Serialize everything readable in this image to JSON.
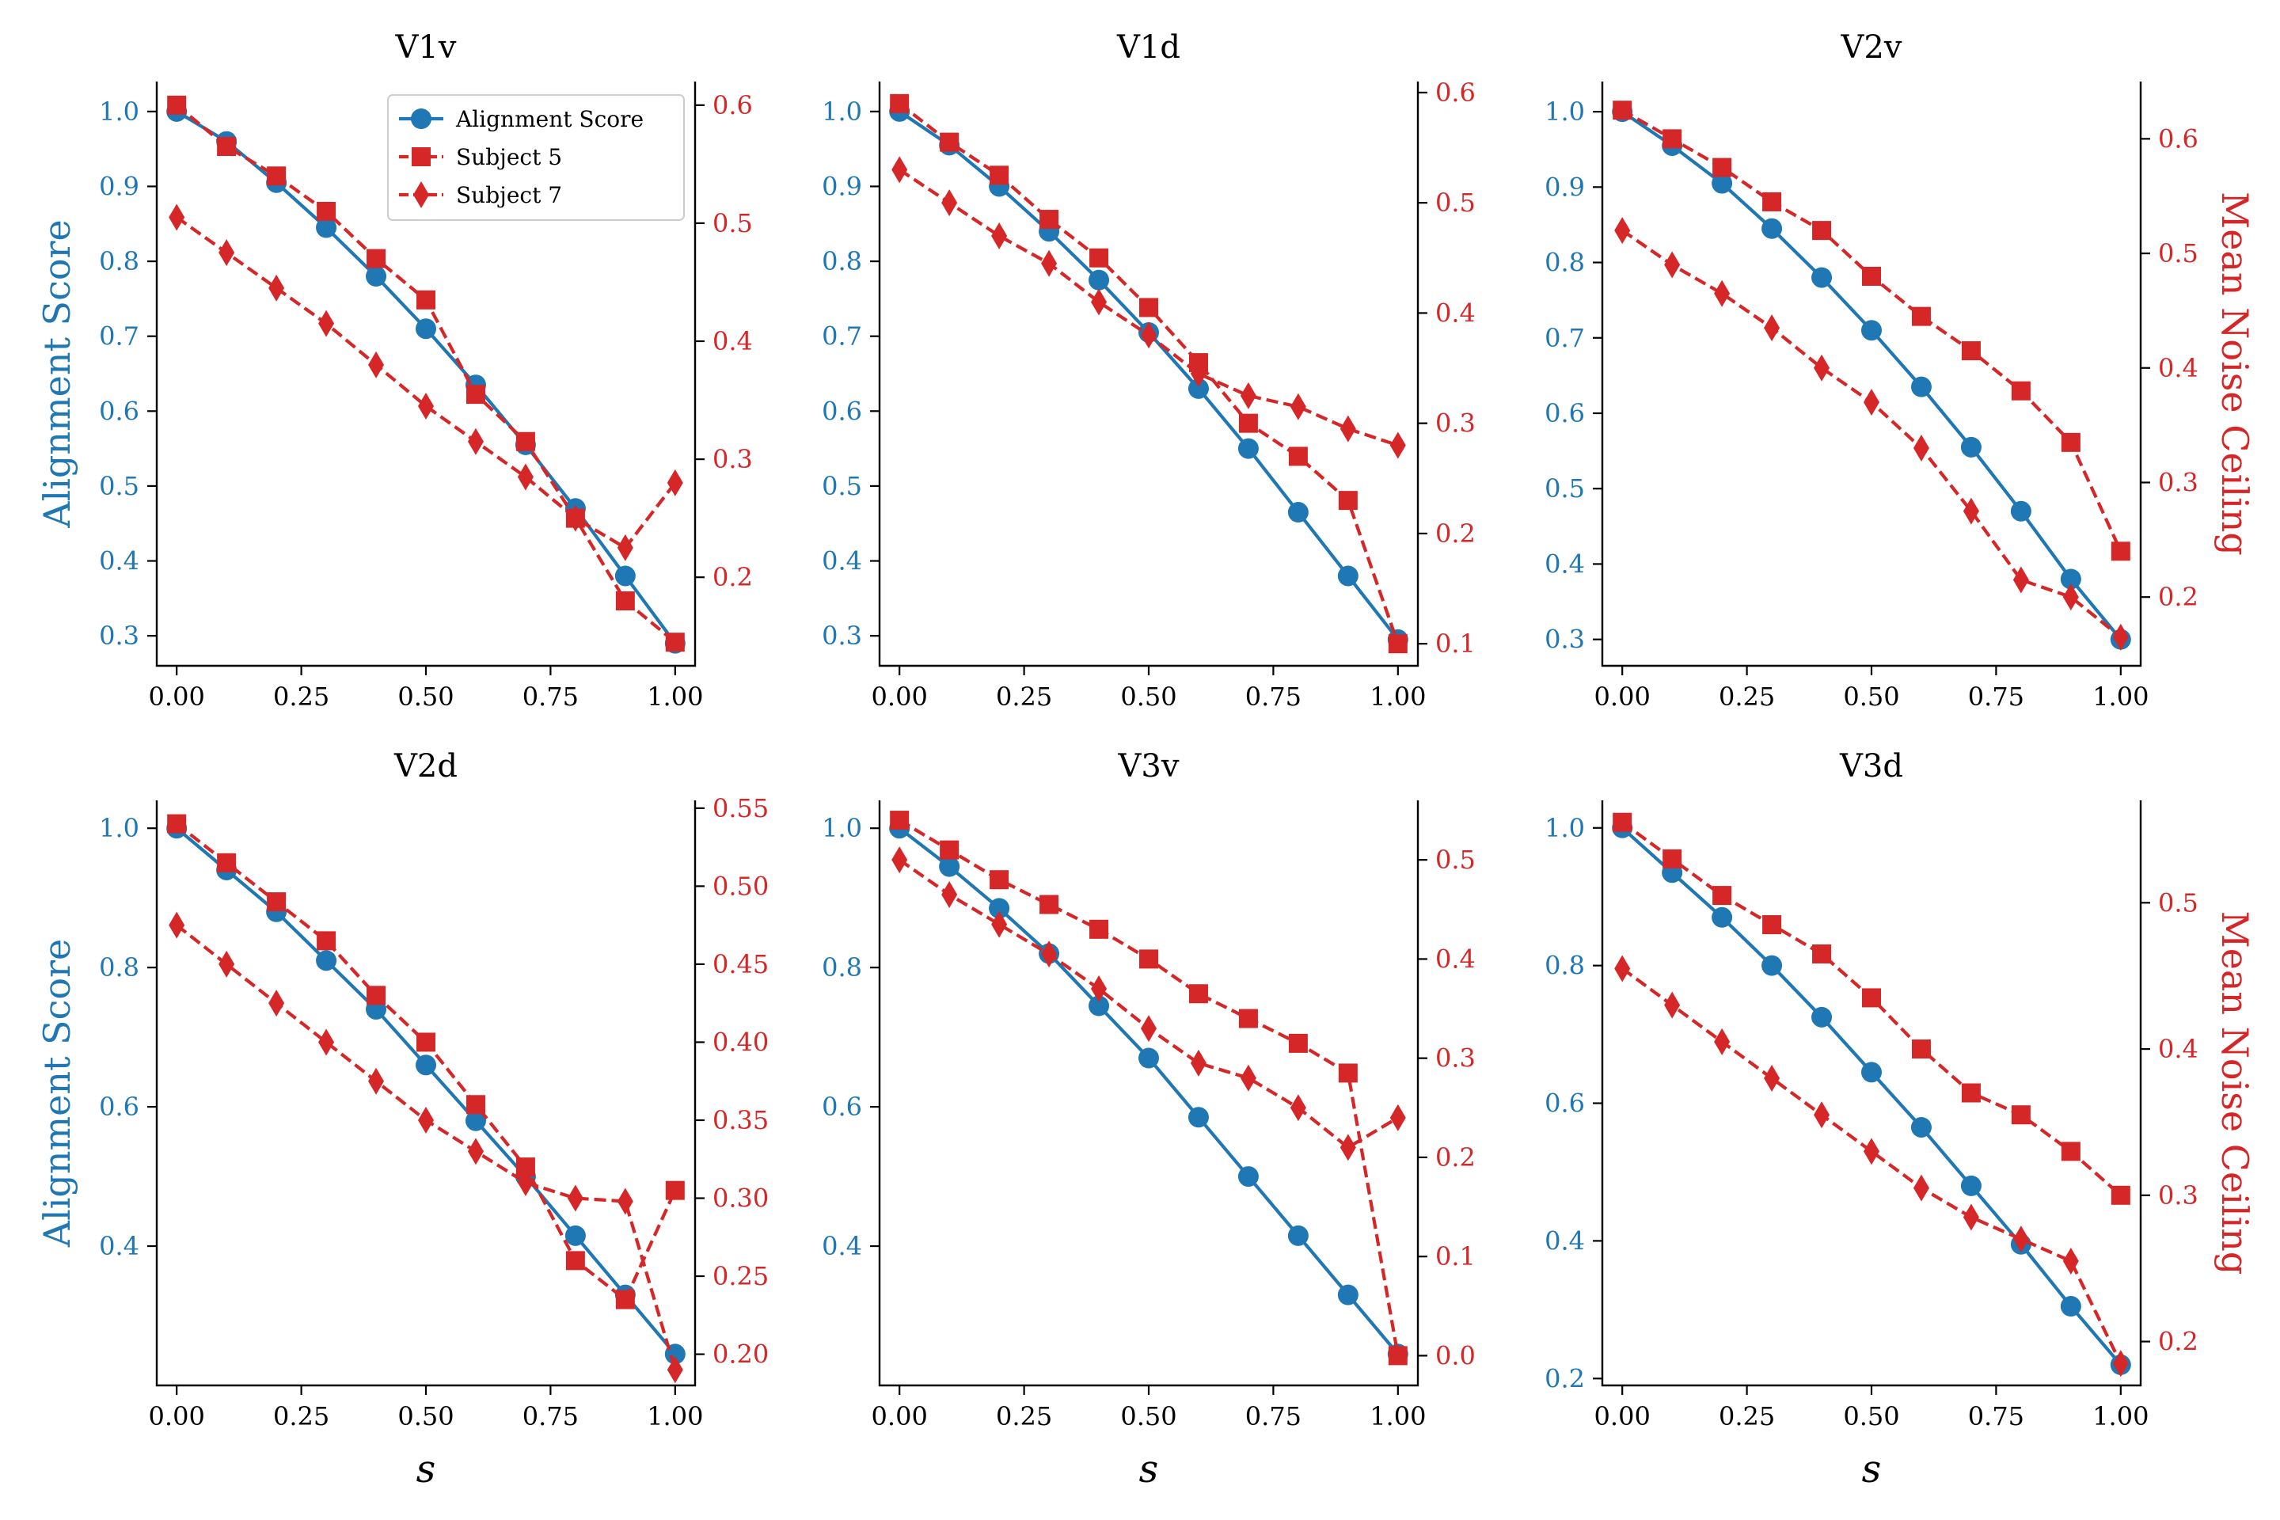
{
  "colors": {
    "alignment": "#1f77b4",
    "noise": "#d62728",
    "axis": "#000000"
  },
  "chart_data": [
    {
      "type": "line",
      "title": "V1v",
      "x": [
        0,
        0.1,
        0.2,
        0.3,
        0.4,
        0.5,
        0.6,
        0.7,
        0.8,
        0.9,
        1.0
      ],
      "xticks": [
        "0.00",
        "0.25",
        "0.50",
        "0.75",
        "1.00"
      ],
      "xlabel": "",
      "ylabel_left": "Alignment Score",
      "ylabel_right": "",
      "ylim_left": [
        0.26,
        1.04
      ],
      "ylim_right": [
        0.125,
        0.62
      ],
      "yticks_left": [
        "0.3",
        "0.4",
        "0.5",
        "0.6",
        "0.7",
        "0.8",
        "0.9",
        "1.0"
      ],
      "yticks_right": [
        "0.2",
        "0.3",
        "0.4",
        "0.5",
        "0.6"
      ],
      "series": [
        {
          "name": "Alignment Score",
          "axis": "left",
          "marker": "circle",
          "values": [
            1.0,
            0.96,
            0.905,
            0.845,
            0.78,
            0.71,
            0.635,
            0.555,
            0.47,
            0.38,
            0.29
          ]
        },
        {
          "name": "Subject 5",
          "axis": "right",
          "marker": "square",
          "values": [
            0.6,
            0.565,
            0.54,
            0.51,
            0.47,
            0.435,
            0.355,
            0.315,
            0.25,
            0.18,
            0.145
          ]
        },
        {
          "name": "Subject 7",
          "axis": "right",
          "marker": "diamond",
          "values": [
            0.505,
            0.475,
            0.445,
            0.415,
            0.38,
            0.345,
            0.315,
            0.285,
            0.25,
            0.225,
            0.28
          ]
        }
      ],
      "legend": {
        "position": "upper-right",
        "entries": [
          "Alignment Score",
          "Subject 5",
          "Subject 7"
        ]
      }
    },
    {
      "type": "line",
      "title": "V1d",
      "x": [
        0,
        0.1,
        0.2,
        0.3,
        0.4,
        0.5,
        0.6,
        0.7,
        0.8,
        0.9,
        1.0
      ],
      "xticks": [
        "0.00",
        "0.25",
        "0.50",
        "0.75",
        "1.00"
      ],
      "xlabel": "",
      "ylabel_left": "",
      "ylabel_right": "",
      "ylim_left": [
        0.26,
        1.04
      ],
      "ylim_right": [
        0.08,
        0.61
      ],
      "yticks_left": [
        "0.3",
        "0.4",
        "0.5",
        "0.6",
        "0.7",
        "0.8",
        "0.9",
        "1.0"
      ],
      "yticks_right": [
        "0.1",
        "0.2",
        "0.3",
        "0.4",
        "0.5",
        "0.6"
      ],
      "series": [
        {
          "name": "Alignment Score",
          "axis": "left",
          "marker": "circle",
          "values": [
            1.0,
            0.955,
            0.9,
            0.84,
            0.775,
            0.705,
            0.63,
            0.55,
            0.465,
            0.38,
            0.295
          ]
        },
        {
          "name": "Subject 5",
          "axis": "right",
          "marker": "square",
          "values": [
            0.59,
            0.555,
            0.525,
            0.485,
            0.45,
            0.405,
            0.355,
            0.3,
            0.27,
            0.23,
            0.1
          ]
        },
        {
          "name": "Subject 7",
          "axis": "right",
          "marker": "diamond",
          "values": [
            0.53,
            0.5,
            0.47,
            0.445,
            0.41,
            0.38,
            0.345,
            0.325,
            0.315,
            0.295,
            0.28
          ]
        }
      ]
    },
    {
      "type": "line",
      "title": "V2v",
      "x": [
        0,
        0.1,
        0.2,
        0.3,
        0.4,
        0.5,
        0.6,
        0.7,
        0.8,
        0.9,
        1.0
      ],
      "xticks": [
        "0.00",
        "0.25",
        "0.50",
        "0.75",
        "1.00"
      ],
      "xlabel": "",
      "ylabel_left": "",
      "ylabel_right": "Mean Noise Ceiling",
      "ylim_left": [
        0.265,
        1.04
      ],
      "ylim_right": [
        0.14,
        0.65
      ],
      "yticks_left": [
        "0.3",
        "0.4",
        "0.5",
        "0.6",
        "0.7",
        "0.8",
        "0.9",
        "1.0"
      ],
      "yticks_right": [
        "0.2",
        "0.3",
        "0.4",
        "0.5",
        "0.6"
      ],
      "series": [
        {
          "name": "Alignment Score",
          "axis": "left",
          "marker": "circle",
          "values": [
            1.0,
            0.955,
            0.905,
            0.845,
            0.78,
            0.71,
            0.635,
            0.555,
            0.47,
            0.38,
            0.3
          ]
        },
        {
          "name": "Subject 5",
          "axis": "right",
          "marker": "square",
          "values": [
            0.625,
            0.6,
            0.575,
            0.545,
            0.52,
            0.48,
            0.445,
            0.415,
            0.38,
            0.335,
            0.24
          ]
        },
        {
          "name": "Subject 7",
          "axis": "right",
          "marker": "diamond",
          "values": [
            0.52,
            0.49,
            0.465,
            0.435,
            0.4,
            0.37,
            0.33,
            0.275,
            0.215,
            0.2,
            0.165
          ]
        }
      ]
    },
    {
      "type": "line",
      "title": "V2d",
      "x": [
        0,
        0.1,
        0.2,
        0.3,
        0.4,
        0.5,
        0.6,
        0.7,
        0.8,
        0.9,
        1.0
      ],
      "xticks": [
        "0.00",
        "0.25",
        "0.50",
        "0.75",
        "1.00"
      ],
      "xlabel": "s",
      "ylabel_left": "Alignment Score",
      "ylabel_right": "",
      "ylim_left": [
        0.2,
        1.04
      ],
      "ylim_right": [
        0.18,
        0.555
      ],
      "yticks_left": [
        "0.4",
        "0.6",
        "0.8",
        "1.0"
      ],
      "yticks_right": [
        "0.20",
        "0.25",
        "0.30",
        "0.35",
        "0.40",
        "0.45",
        "0.50",
        "0.55"
      ],
      "series": [
        {
          "name": "Alignment Score",
          "axis": "left",
          "marker": "circle",
          "values": [
            1.0,
            0.94,
            0.88,
            0.81,
            0.74,
            0.66,
            0.58,
            0.5,
            0.415,
            0.33,
            0.245
          ]
        },
        {
          "name": "Subject 5",
          "axis": "right",
          "marker": "square",
          "values": [
            0.54,
            0.515,
            0.49,
            0.465,
            0.43,
            0.4,
            0.36,
            0.32,
            0.26,
            0.235,
            0.305
          ]
        },
        {
          "name": "Subject 7",
          "axis": "right",
          "marker": "diamond",
          "values": [
            0.475,
            0.45,
            0.425,
            0.4,
            0.375,
            0.35,
            0.33,
            0.31,
            0.3,
            0.298,
            0.19
          ]
        }
      ]
    },
    {
      "type": "line",
      "title": "V3v",
      "x": [
        0,
        0.1,
        0.2,
        0.3,
        0.4,
        0.5,
        0.6,
        0.7,
        0.8,
        0.9,
        1.0
      ],
      "xticks": [
        "0.00",
        "0.25",
        "0.50",
        "0.75",
        "1.00"
      ],
      "xlabel": "s",
      "ylabel_left": "",
      "ylabel_right": "",
      "ylim_left": [
        0.2,
        1.04
      ],
      "ylim_right": [
        -0.03,
        0.56
      ],
      "yticks_left": [
        "0.4",
        "0.6",
        "0.8",
        "1.0"
      ],
      "yticks_right": [
        "0.0",
        "0.1",
        "0.2",
        "0.3",
        "0.4",
        "0.5"
      ],
      "series": [
        {
          "name": "Alignment Score",
          "axis": "left",
          "marker": "circle",
          "values": [
            1.0,
            0.945,
            0.885,
            0.82,
            0.745,
            0.67,
            0.585,
            0.5,
            0.415,
            0.33,
            0.245
          ]
        },
        {
          "name": "Subject 5",
          "axis": "right",
          "marker": "square",
          "values": [
            0.54,
            0.51,
            0.48,
            0.455,
            0.43,
            0.4,
            0.365,
            0.34,
            0.315,
            0.285,
            0.0
          ]
        },
        {
          "name": "Subject 7",
          "axis": "right",
          "marker": "diamond",
          "values": [
            0.5,
            0.465,
            0.435,
            0.405,
            0.37,
            0.33,
            0.295,
            0.28,
            0.25,
            0.21,
            0.24
          ]
        }
      ]
    },
    {
      "type": "line",
      "title": "V3d",
      "x": [
        0,
        0.1,
        0.2,
        0.3,
        0.4,
        0.5,
        0.6,
        0.7,
        0.8,
        0.9,
        1.0
      ],
      "xticks": [
        "0.00",
        "0.25",
        "0.50",
        "0.75",
        "1.00"
      ],
      "xlabel": "s",
      "ylabel_left": "",
      "ylabel_right": "Mean Noise Ceiling",
      "ylim_left": [
        0.19,
        1.04
      ],
      "ylim_right": [
        0.17,
        0.57
      ],
      "yticks_left": [
        "0.2",
        "0.4",
        "0.6",
        "0.8",
        "1.0"
      ],
      "yticks_right": [
        "0.2",
        "0.3",
        "0.4",
        "0.5"
      ],
      "series": [
        {
          "name": "Alignment Score",
          "axis": "left",
          "marker": "circle",
          "values": [
            1.0,
            0.935,
            0.87,
            0.8,
            0.725,
            0.645,
            0.565,
            0.48,
            0.395,
            0.305,
            0.22
          ]
        },
        {
          "name": "Subject 5",
          "axis": "right",
          "marker": "square",
          "values": [
            0.555,
            0.53,
            0.505,
            0.485,
            0.465,
            0.435,
            0.4,
            0.37,
            0.355,
            0.33,
            0.3
          ]
        },
        {
          "name": "Subject 7",
          "axis": "right",
          "marker": "diamond",
          "values": [
            0.455,
            0.43,
            0.405,
            0.38,
            0.355,
            0.33,
            0.305,
            0.285,
            0.27,
            0.255,
            0.185
          ]
        }
      ]
    }
  ]
}
